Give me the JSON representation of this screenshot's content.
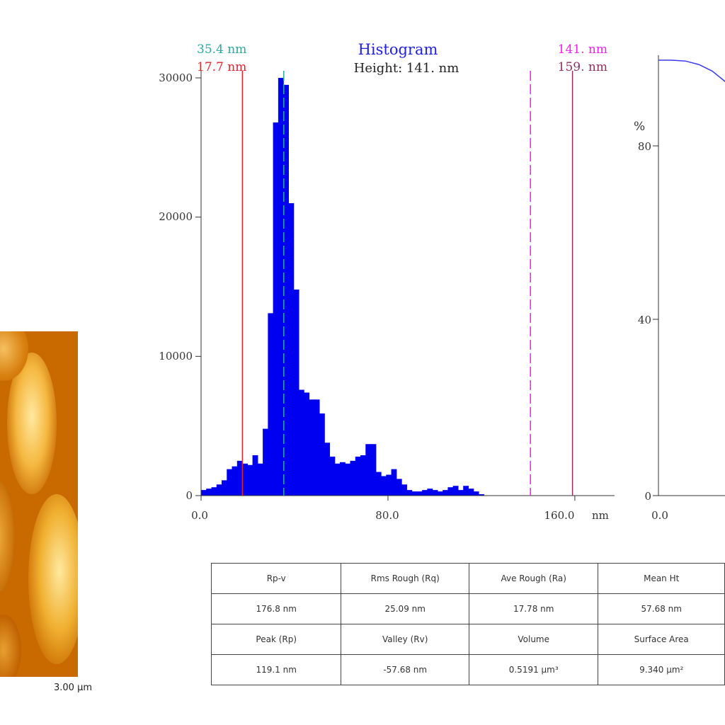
{
  "afm_image": {
    "scale_label": "3.00 µm"
  },
  "cursors": {
    "left_top": "35.4 nm",
    "left_bottom": "17.7 nm",
    "right_top": "141. nm",
    "right_bottom": "159. nm"
  },
  "cursor_values": {
    "red": 17.7,
    "teal": 35.4,
    "magenta": 141,
    "purple": 159
  },
  "colors": {
    "bars": "#0000f0",
    "red": "#e8202a",
    "teal": "#2aa8a0",
    "magenta": "#f020f0",
    "purple": "#903060",
    "title": "#2020e0"
  },
  "chart_data": [
    {
      "type": "bar",
      "title": "Histogram",
      "subtitle": "Height: 141. nm",
      "xlabel": "nm",
      "xticks": [
        "0.0",
        "80.0",
        "160.0"
      ],
      "yticks": [
        "0",
        "10000",
        "20000",
        "30000"
      ],
      "xlim": [
        0,
        177
      ],
      "ylim": [
        0,
        30000
      ],
      "bin_width": 2.2,
      "values": [
        400,
        500,
        600,
        800,
        1100,
        1900,
        2100,
        2500,
        2300,
        2200,
        2900,
        2300,
        4800,
        13100,
        26800,
        30000,
        29500,
        21000,
        14800,
        7600,
        7400,
        6900,
        6900,
        5900,
        3800,
        2800,
        2300,
        2400,
        2300,
        2500,
        2800,
        2900,
        3700,
        3700,
        1700,
        1400,
        1500,
        1900,
        1200,
        800,
        400,
        300,
        300,
        400,
        500,
        400,
        300,
        400,
        600,
        700,
        400,
        700,
        500,
        300,
        100
      ]
    },
    {
      "type": "line",
      "ylabel": "%",
      "xticks": [
        "0.0"
      ],
      "yticks": [
        "0",
        "40",
        "80"
      ],
      "ylim": [
        0,
        101
      ],
      "series": [
        {
          "x": [
            0,
            20,
            40,
            60,
            80,
            100
          ],
          "y": [
            100,
            100,
            99.8,
            99,
            97.5,
            95
          ]
        }
      ]
    }
  ],
  "stats_table": {
    "rows": [
      [
        "Rp-v",
        "Rms Rough (Rq)",
        "Ave Rough (Ra)",
        "Mean Ht"
      ],
      [
        "176.8 nm",
        "25.09 nm",
        "17.78 nm",
        "57.68 nm"
      ],
      [
        "Peak (Rp)",
        "Valley (Rv)",
        "Volume",
        "Surface Area"
      ],
      [
        "119.1 nm",
        "-57.68 nm",
        "0.5191 µm³",
        "9.340 µm²"
      ]
    ]
  }
}
